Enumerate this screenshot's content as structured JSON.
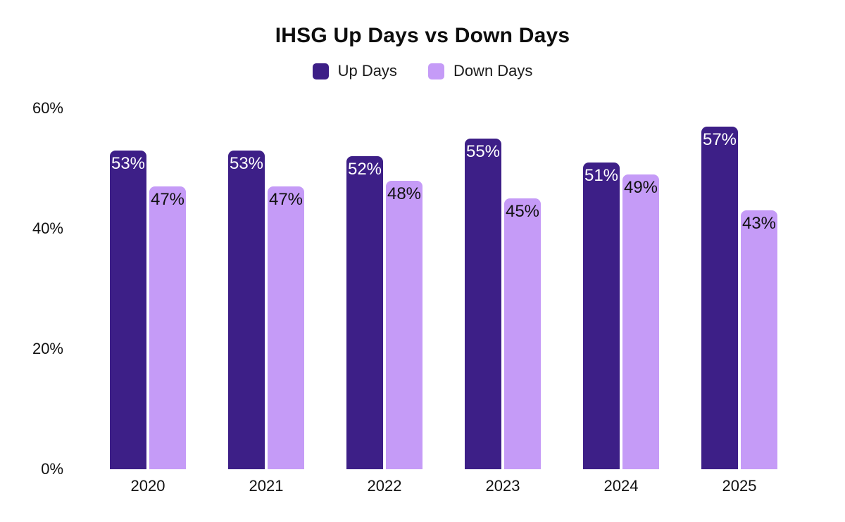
{
  "chart_data": {
    "type": "bar",
    "title": "IHSG Up Days vs Down Days",
    "categories": [
      "2020",
      "2021",
      "2022",
      "2023",
      "2024",
      "2025"
    ],
    "series": [
      {
        "name": "Up Days",
        "color": "#3d1f87",
        "label_color": "#ffffff",
        "values": [
          53,
          53,
          52,
          55,
          51,
          57
        ]
      },
      {
        "name": "Down Days",
        "color": "#c59bf7",
        "label_color": "#111111",
        "values": [
          47,
          47,
          48,
          45,
          49,
          43
        ]
      }
    ],
    "value_suffix": "%",
    "ylabel": "",
    "xlabel": "",
    "yticks": [
      0,
      20,
      40,
      60
    ],
    "ytick_labels": [
      "0%",
      "20%",
      "40%",
      "60%"
    ],
    "ylim": [
      0,
      60
    ],
    "legend_position": "top",
    "grid": false,
    "axis_lines": false
  }
}
